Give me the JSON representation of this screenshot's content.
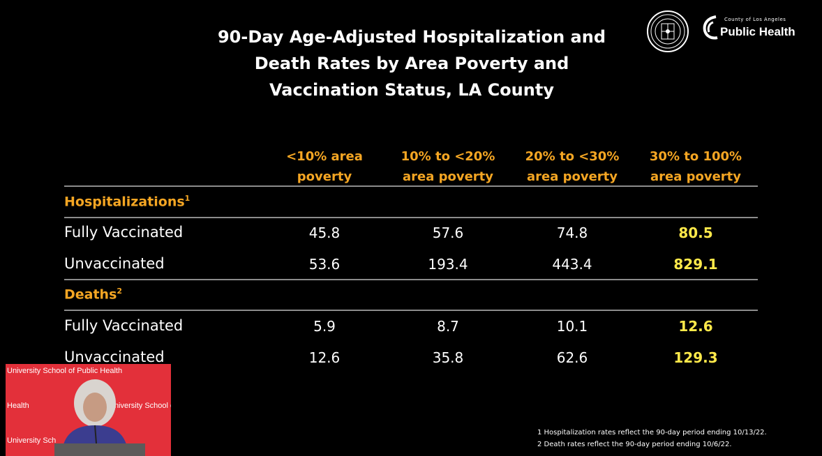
{
  "title": {
    "line1": "90-Day Age-Adjusted Hospitalization and",
    "line2": "Death Rates by Area Poverty and",
    "line3": "Vaccination Status, LA County"
  },
  "logo": {
    "county_text": "County of Los Angeles",
    "brand_text": "Public Health"
  },
  "columns": [
    {
      "line1": "<10% area",
      "line2": "poverty"
    },
    {
      "line1": "10% to <20%",
      "line2": "area poverty"
    },
    {
      "line1": "20% to <30%",
      "line2": "area poverty"
    },
    {
      "line1": "30% to 100%",
      "line2": "area poverty"
    }
  ],
  "sections": {
    "hospitalizations": {
      "label": "Hospitalizations",
      "sup": "1",
      "rows": [
        {
          "label": "Fully Vaccinated",
          "values": [
            "45.8",
            "57.6",
            "74.8",
            "80.5"
          ]
        },
        {
          "label": "Unvaccinated",
          "values": [
            "53.6",
            "193.4",
            "443.4",
            "829.1"
          ]
        }
      ]
    },
    "deaths": {
      "label": "Deaths",
      "sup": "2",
      "rows": [
        {
          "label": "Fully Vaccinated",
          "values": [
            "5.9",
            "8.7",
            "10.1",
            "12.6"
          ]
        },
        {
          "label": "Unvaccinated",
          "values": [
            "12.6",
            "35.8",
            "62.6",
            "129.3"
          ]
        }
      ]
    }
  },
  "webcam": {
    "banner_top": "University School of Public Health",
    "banner_mid_left": "Health",
    "banner_mid_right": "University School o",
    "banner_bottom": "University Sch"
  },
  "footnotes": {
    "note1": "1 Hospitalization rates reflect the 90-day period ending 10/13/22.",
    "note2": "2 Death rates reflect the 90-day period ending 10/6/22."
  },
  "colors": {
    "header_accent": "#f5a623",
    "highlight_value": "#ffe94a",
    "background": "#000000",
    "webcam_backdrop": "#e3303a"
  }
}
